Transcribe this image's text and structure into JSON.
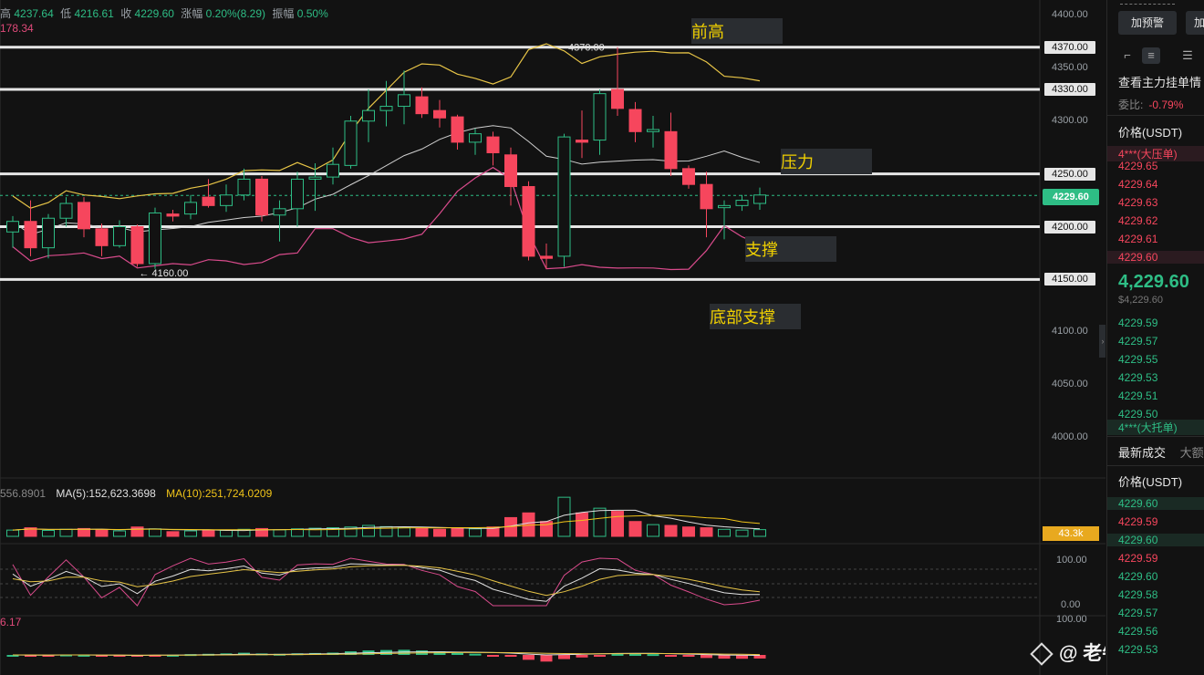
{
  "chart_header": {
    "ohlc_prefix": "高",
    "high": "4237.64",
    "low_label": "低",
    "low": "4216.61",
    "close_label": "收",
    "close": "4229.60",
    "change_label": "涨幅",
    "change": "0.20%(8.29)",
    "amplitude_label": "振幅",
    "amplitude": "0.50%",
    "ma_value": "178.34"
  },
  "annotations": {
    "prev_high": "前高",
    "resistance": "压力",
    "support": "支撑",
    "bottom_support": "底部支撑"
  },
  "price_labels": {
    "max_marker": "4370.00",
    "min_marker": "← 4160.00"
  },
  "axis": {
    "ticks": [
      "4400.00",
      "4350.00",
      "4300.00",
      "4250.00",
      "4200.00",
      "4150.00",
      "4100.00",
      "4050.00",
      "4000.00"
    ],
    "levels": [
      "4370.00",
      "4330.00",
      "4250.00",
      "4200.00",
      "4150.00"
    ],
    "current_price": "4229.60"
  },
  "volume": {
    "legend_a": "556.8901",
    "legend_b": "MA(5):152,623.3698",
    "legend_c": "MA(10):251,724.0209",
    "current": "43.3k"
  },
  "indicators": {
    "kdj_axis_top": "100.00",
    "kdj_axis_bottom": "0.00",
    "kdj_value": "6.17",
    "macd_axis_top": "100.00"
  },
  "watermark": "@ 老牛说趋势",
  "right_panel": {
    "alert_button": "加预警",
    "add_button": "加",
    "depth_title": "查看主力挂单情",
    "ratio_label": "委比:",
    "ratio_value": "-0.79%",
    "price_header": "价格(USDT)",
    "big_ask": "4***(大压单)",
    "asks": [
      "4229.65",
      "4229.64",
      "4229.63",
      "4229.62",
      "4229.61",
      "4229.60"
    ],
    "last_price": "4,229.60",
    "last_price_usd": "$4,229.60",
    "bids": [
      "4229.59",
      "4229.57",
      "4229.55",
      "4229.53",
      "4229.51",
      "4229.50"
    ],
    "big_bid": "4***(大托单)",
    "tab_trades": "最新成交",
    "tab_big": "大额",
    "trades_header": "价格(USDT)",
    "trades": [
      {
        "price": "4229.60",
        "side": "buy"
      },
      {
        "price": "4229.59",
        "side": "sell"
      },
      {
        "price": "4229.60",
        "side": "buy"
      },
      {
        "price": "4229.59",
        "side": "sell"
      },
      {
        "price": "4229.60",
        "side": "buy"
      },
      {
        "price": "4229.58",
        "side": "buy"
      },
      {
        "price": "4229.57",
        "side": "buy"
      },
      {
        "price": "4229.56",
        "side": "buy"
      },
      {
        "price": "4229.53",
        "side": "buy"
      }
    ]
  },
  "chart_data": {
    "type": "candlestick",
    "y_unit": "USDT",
    "ylim": [
      3970,
      4420
    ],
    "horizontal_levels": [
      4370,
      4330,
      4250,
      4200,
      4150
    ],
    "candles": [
      {
        "o": 4195,
        "h": 4210,
        "l": 4180,
        "c": 4205
      },
      {
        "o": 4205,
        "h": 4225,
        "l": 4172,
        "c": 4180
      },
      {
        "o": 4180,
        "h": 4212,
        "l": 4170,
        "c": 4208
      },
      {
        "o": 4208,
        "h": 4228,
        "l": 4200,
        "c": 4222
      },
      {
        "o": 4223,
        "h": 4228,
        "l": 4190,
        "c": 4198
      },
      {
        "o": 4198,
        "h": 4203,
        "l": 4172,
        "c": 4182
      },
      {
        "o": 4182,
        "h": 4206,
        "l": 4180,
        "c": 4200
      },
      {
        "o": 4200,
        "h": 4202,
        "l": 4162,
        "c": 4165
      },
      {
        "o": 4165,
        "h": 4218,
        "l": 4160,
        "c": 4213
      },
      {
        "o": 4212,
        "h": 4216,
        "l": 4205,
        "c": 4210
      },
      {
        "o": 4212,
        "h": 4230,
        "l": 4207,
        "c": 4223
      },
      {
        "o": 4228,
        "h": 4245,
        "l": 4218,
        "c": 4220
      },
      {
        "o": 4220,
        "h": 4240,
        "l": 4214,
        "c": 4230
      },
      {
        "o": 4230,
        "h": 4255,
        "l": 4225,
        "c": 4245
      },
      {
        "o": 4245,
        "h": 4248,
        "l": 4205,
        "c": 4211
      },
      {
        "o": 4211,
        "h": 4225,
        "l": 4186,
        "c": 4217
      },
      {
        "o": 4217,
        "h": 4252,
        "l": 4200,
        "c": 4245
      },
      {
        "o": 4245,
        "h": 4260,
        "l": 4215,
        "c": 4247
      },
      {
        "o": 4247,
        "h": 4275,
        "l": 4240,
        "c": 4259
      },
      {
        "o": 4258,
        "h": 4305,
        "l": 4255,
        "c": 4300
      },
      {
        "o": 4300,
        "h": 4330,
        "l": 4280,
        "c": 4310
      },
      {
        "o": 4310,
        "h": 4338,
        "l": 4295,
        "c": 4314
      },
      {
        "o": 4314,
        "h": 4348,
        "l": 4297,
        "c": 4325
      },
      {
        "o": 4323,
        "h": 4332,
        "l": 4303,
        "c": 4307
      },
      {
        "o": 4310,
        "h": 4320,
        "l": 4294,
        "c": 4303
      },
      {
        "o": 4304,
        "h": 4306,
        "l": 4273,
        "c": 4280
      },
      {
        "o": 4280,
        "h": 4293,
        "l": 4268,
        "c": 4288
      },
      {
        "o": 4285,
        "h": 4290,
        "l": 4258,
        "c": 4270
      },
      {
        "o": 4268,
        "h": 4275,
        "l": 4220,
        "c": 4238
      },
      {
        "o": 4238,
        "h": 4243,
        "l": 4168,
        "c": 4172
      },
      {
        "o": 4172,
        "h": 4184,
        "l": 4160,
        "c": 4170
      },
      {
        "o": 4172,
        "h": 4288,
        "l": 4162,
        "c": 4285
      },
      {
        "o": 4282,
        "h": 4310,
        "l": 4265,
        "c": 4280
      },
      {
        "o": 4282,
        "h": 4330,
        "l": 4268,
        "c": 4326
      },
      {
        "o": 4330,
        "h": 4370,
        "l": 4305,
        "c": 4312
      },
      {
        "o": 4311,
        "h": 4318,
        "l": 4280,
        "c": 4290
      },
      {
        "o": 4290,
        "h": 4305,
        "l": 4275,
        "c": 4292
      },
      {
        "o": 4290,
        "h": 4308,
        "l": 4248,
        "c": 4255
      },
      {
        "o": 4255,
        "h": 4258,
        "l": 4236,
        "c": 4240
      },
      {
        "o": 4240,
        "h": 4252,
        "l": 4190,
        "c": 4217
      },
      {
        "o": 4218,
        "h": 4225,
        "l": 4188,
        "c": 4220
      },
      {
        "o": 4220,
        "h": 4230,
        "l": 4215,
        "c": 4225
      },
      {
        "o": 4222,
        "h": 4237,
        "l": 4216,
        "c": 4230
      }
    ],
    "volume": [
      40,
      55,
      38,
      45,
      50,
      42,
      35,
      60,
      48,
      30,
      35,
      40,
      38,
      45,
      50,
      42,
      48,
      52,
      55,
      60,
      70,
      62,
      58,
      50,
      45,
      55,
      48,
      60,
      120,
      150,
      95,
      250,
      150,
      180,
      160,
      95,
      75,
      70,
      60,
      55,
      45,
      40,
      43
    ]
  }
}
